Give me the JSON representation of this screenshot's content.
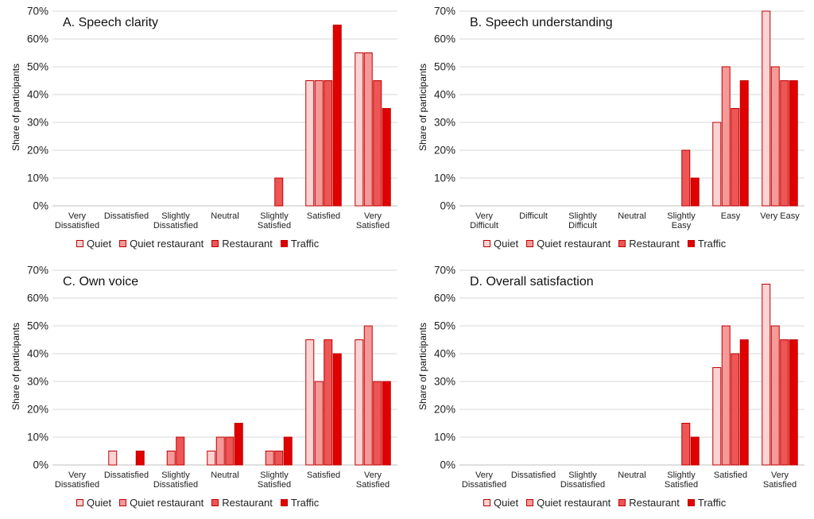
{
  "legend": {
    "items": [
      {
        "label": "Quiet",
        "color": "#fbd3d3"
      },
      {
        "label": "Quiet restaurant",
        "color": "#f59999"
      },
      {
        "label": "Restaurant",
        "color": "#ee5555"
      },
      {
        "label": "Traffic",
        "color": "#e00000"
      }
    ]
  },
  "chart_data": [
    {
      "type": "bar",
      "title": "A. Speech clarity",
      "ylabel": "Share of participants",
      "ylim": [
        0,
        70
      ],
      "yticks": [
        "0%",
        "10%",
        "20%",
        "30%",
        "40%",
        "50%",
        "60%",
        "70%"
      ],
      "categories": [
        [
          "Very",
          "Dissatisfied"
        ],
        [
          "Dissatisfied"
        ],
        [
          "Slightly",
          "Dissatisfied"
        ],
        [
          "Neutral"
        ],
        [
          "Slightly",
          "Satisfied"
        ],
        [
          "Satisfied"
        ],
        [
          "Very",
          "Satisfied"
        ]
      ],
      "series": [
        {
          "name": "Quiet",
          "values": [
            0,
            0,
            0,
            0,
            0,
            45,
            55
          ]
        },
        {
          "name": "Quiet restaurant",
          "values": [
            0,
            0,
            0,
            0,
            0,
            45,
            55
          ]
        },
        {
          "name": "Restaurant",
          "values": [
            0,
            0,
            0,
            0,
            10,
            45,
            45
          ]
        },
        {
          "name": "Traffic",
          "values": [
            0,
            0,
            0,
            0,
            0,
            65,
            35
          ]
        }
      ]
    },
    {
      "type": "bar",
      "title": "B. Speech understanding",
      "ylabel": "Share of participants",
      "ylim": [
        0,
        70
      ],
      "yticks": [
        "0%",
        "10%",
        "20%",
        "30%",
        "40%",
        "50%",
        "60%",
        "70%"
      ],
      "categories": [
        [
          "Very",
          "Difficult"
        ],
        [
          "Difficult"
        ],
        [
          "Slightly",
          "Difficult"
        ],
        [
          "Neutral"
        ],
        [
          "Slightly",
          "Easy"
        ],
        [
          "Easy"
        ],
        [
          "Very Easy"
        ]
      ],
      "series": [
        {
          "name": "Quiet",
          "values": [
            0,
            0,
            0,
            0,
            0,
            30,
            70
          ]
        },
        {
          "name": "Quiet restaurant",
          "values": [
            0,
            0,
            0,
            0,
            0,
            50,
            50
          ]
        },
        {
          "name": "Restaurant",
          "values": [
            0,
            0,
            0,
            0,
            20,
            35,
            45
          ]
        },
        {
          "name": "Traffic",
          "values": [
            0,
            0,
            0,
            0,
            10,
            45,
            45
          ]
        }
      ]
    },
    {
      "type": "bar",
      "title": "C. Own voice",
      "ylabel": "Share of participants",
      "ylim": [
        0,
        70
      ],
      "yticks": [
        "0%",
        "10%",
        "20%",
        "30%",
        "40%",
        "50%",
        "60%",
        "70%"
      ],
      "categories": [
        [
          "Very",
          "Dissatisfied"
        ],
        [
          "Dissatisfied"
        ],
        [
          "Slightly",
          "Dissatisfied"
        ],
        [
          "Neutral"
        ],
        [
          "Slightly",
          "Satisfied"
        ],
        [
          "Satisfied"
        ],
        [
          "Very",
          "Satisfied"
        ]
      ],
      "series": [
        {
          "name": "Quiet",
          "values": [
            0,
            5,
            0,
            5,
            0,
            45,
            45
          ]
        },
        {
          "name": "Quiet restaurant",
          "values": [
            0,
            0,
            5,
            10,
            5,
            30,
            50
          ]
        },
        {
          "name": "Restaurant",
          "values": [
            0,
            0,
            10,
            10,
            5,
            45,
            30
          ]
        },
        {
          "name": "Traffic",
          "values": [
            0,
            5,
            0,
            15,
            10,
            40,
            30
          ]
        }
      ]
    },
    {
      "type": "bar",
      "title": "D. Overall satisfaction",
      "ylabel": "Share of participants",
      "ylim": [
        0,
        70
      ],
      "yticks": [
        "0%",
        "10%",
        "20%",
        "30%",
        "40%",
        "50%",
        "60%",
        "70%"
      ],
      "categories": [
        [
          "Very",
          "Dissatisfied"
        ],
        [
          "Dissatisfied"
        ],
        [
          "Slightly",
          "Dissatisfied"
        ],
        [
          "Neutral"
        ],
        [
          "Slightly",
          "Satisfied"
        ],
        [
          "Satisfied"
        ],
        [
          "Very",
          "Satisfied"
        ]
      ],
      "series": [
        {
          "name": "Quiet",
          "values": [
            0,
            0,
            0,
            0,
            0,
            35,
            65
          ]
        },
        {
          "name": "Quiet restaurant",
          "values": [
            0,
            0,
            0,
            0,
            0,
            50,
            50
          ]
        },
        {
          "name": "Restaurant",
          "values": [
            0,
            0,
            0,
            0,
            15,
            40,
            45
          ]
        },
        {
          "name": "Traffic",
          "values": [
            0,
            0,
            0,
            0,
            10,
            45,
            45
          ]
        }
      ]
    }
  ]
}
